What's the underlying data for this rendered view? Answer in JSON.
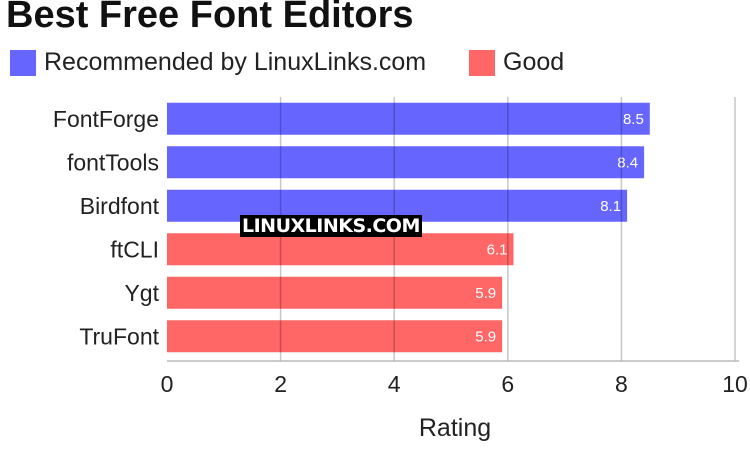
{
  "chart_data": {
    "type": "bar",
    "orientation": "horizontal",
    "title": "Best Free Font Editors",
    "xlabel": "Rating",
    "ylabel": "",
    "xlim": [
      0,
      10
    ],
    "xticks": [
      0,
      2,
      4,
      6,
      8,
      10
    ],
    "grid": true,
    "legend_position": "top",
    "categories": [
      "FontForge",
      "fontTools",
      "Birdfont",
      "ftCLI",
      "Ygt",
      "TruFont"
    ],
    "values": [
      8.5,
      8.4,
      8.1,
      6.1,
      5.9,
      5.9
    ],
    "groups": [
      "Recommended by LinuxLinks.com",
      "Recommended by LinuxLinks.com",
      "Recommended by LinuxLinks.com",
      "Good",
      "Good",
      "Good"
    ],
    "legend": [
      {
        "name": "Recommended by LinuxLinks.com",
        "color": "#6666ff"
      },
      {
        "name": "Good",
        "color": "#ff6666"
      }
    ]
  },
  "watermark": "LINUXLINKS.COM"
}
